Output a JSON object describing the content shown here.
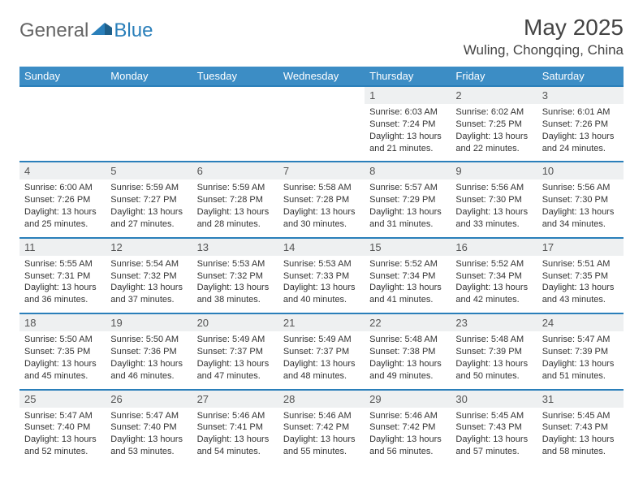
{
  "logo": {
    "part1": "General",
    "part2": "Blue"
  },
  "title": "May 2025",
  "location": "Wuling, Chongqing, China",
  "colors": {
    "header_bg": "#3c8dc5",
    "header_text": "#ffffff",
    "row_accent": "#2a7fba",
    "daynum_bg": "#eef0f1",
    "text": "#333333"
  },
  "weekdays": [
    "Sunday",
    "Monday",
    "Tuesday",
    "Wednesday",
    "Thursday",
    "Friday",
    "Saturday"
  ],
  "weeks": [
    [
      null,
      null,
      null,
      null,
      {
        "n": "1",
        "sr": "6:03 AM",
        "ss": "7:24 PM",
        "dl": "13 hours and 21 minutes."
      },
      {
        "n": "2",
        "sr": "6:02 AM",
        "ss": "7:25 PM",
        "dl": "13 hours and 22 minutes."
      },
      {
        "n": "3",
        "sr": "6:01 AM",
        "ss": "7:26 PM",
        "dl": "13 hours and 24 minutes."
      }
    ],
    [
      {
        "n": "4",
        "sr": "6:00 AM",
        "ss": "7:26 PM",
        "dl": "13 hours and 25 minutes."
      },
      {
        "n": "5",
        "sr": "5:59 AM",
        "ss": "7:27 PM",
        "dl": "13 hours and 27 minutes."
      },
      {
        "n": "6",
        "sr": "5:59 AM",
        "ss": "7:28 PM",
        "dl": "13 hours and 28 minutes."
      },
      {
        "n": "7",
        "sr": "5:58 AM",
        "ss": "7:28 PM",
        "dl": "13 hours and 30 minutes."
      },
      {
        "n": "8",
        "sr": "5:57 AM",
        "ss": "7:29 PM",
        "dl": "13 hours and 31 minutes."
      },
      {
        "n": "9",
        "sr": "5:56 AM",
        "ss": "7:30 PM",
        "dl": "13 hours and 33 minutes."
      },
      {
        "n": "10",
        "sr": "5:56 AM",
        "ss": "7:30 PM",
        "dl": "13 hours and 34 minutes."
      }
    ],
    [
      {
        "n": "11",
        "sr": "5:55 AM",
        "ss": "7:31 PM",
        "dl": "13 hours and 36 minutes."
      },
      {
        "n": "12",
        "sr": "5:54 AM",
        "ss": "7:32 PM",
        "dl": "13 hours and 37 minutes."
      },
      {
        "n": "13",
        "sr": "5:53 AM",
        "ss": "7:32 PM",
        "dl": "13 hours and 38 minutes."
      },
      {
        "n": "14",
        "sr": "5:53 AM",
        "ss": "7:33 PM",
        "dl": "13 hours and 40 minutes."
      },
      {
        "n": "15",
        "sr": "5:52 AM",
        "ss": "7:34 PM",
        "dl": "13 hours and 41 minutes."
      },
      {
        "n": "16",
        "sr": "5:52 AM",
        "ss": "7:34 PM",
        "dl": "13 hours and 42 minutes."
      },
      {
        "n": "17",
        "sr": "5:51 AM",
        "ss": "7:35 PM",
        "dl": "13 hours and 43 minutes."
      }
    ],
    [
      {
        "n": "18",
        "sr": "5:50 AM",
        "ss": "7:35 PM",
        "dl": "13 hours and 45 minutes."
      },
      {
        "n": "19",
        "sr": "5:50 AM",
        "ss": "7:36 PM",
        "dl": "13 hours and 46 minutes."
      },
      {
        "n": "20",
        "sr": "5:49 AM",
        "ss": "7:37 PM",
        "dl": "13 hours and 47 minutes."
      },
      {
        "n": "21",
        "sr": "5:49 AM",
        "ss": "7:37 PM",
        "dl": "13 hours and 48 minutes."
      },
      {
        "n": "22",
        "sr": "5:48 AM",
        "ss": "7:38 PM",
        "dl": "13 hours and 49 minutes."
      },
      {
        "n": "23",
        "sr": "5:48 AM",
        "ss": "7:39 PM",
        "dl": "13 hours and 50 minutes."
      },
      {
        "n": "24",
        "sr": "5:47 AM",
        "ss": "7:39 PM",
        "dl": "13 hours and 51 minutes."
      }
    ],
    [
      {
        "n": "25",
        "sr": "5:47 AM",
        "ss": "7:40 PM",
        "dl": "13 hours and 52 minutes."
      },
      {
        "n": "26",
        "sr": "5:47 AM",
        "ss": "7:40 PM",
        "dl": "13 hours and 53 minutes."
      },
      {
        "n": "27",
        "sr": "5:46 AM",
        "ss": "7:41 PM",
        "dl": "13 hours and 54 minutes."
      },
      {
        "n": "28",
        "sr": "5:46 AM",
        "ss": "7:42 PM",
        "dl": "13 hours and 55 minutes."
      },
      {
        "n": "29",
        "sr": "5:46 AM",
        "ss": "7:42 PM",
        "dl": "13 hours and 56 minutes."
      },
      {
        "n": "30",
        "sr": "5:45 AM",
        "ss": "7:43 PM",
        "dl": "13 hours and 57 minutes."
      },
      {
        "n": "31",
        "sr": "5:45 AM",
        "ss": "7:43 PM",
        "dl": "13 hours and 58 minutes."
      }
    ]
  ],
  "labels": {
    "sunrise": "Sunrise:",
    "sunset": "Sunset:",
    "daylight": "Daylight:"
  }
}
